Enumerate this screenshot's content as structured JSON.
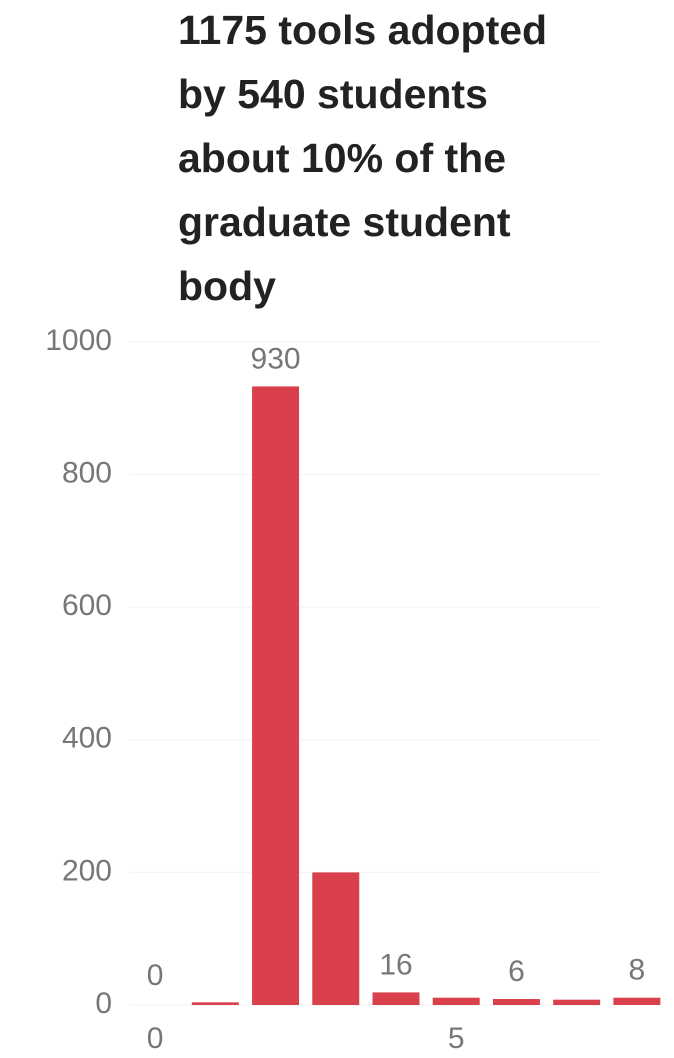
{
  "chart_data": {
    "type": "bar",
    "title": [
      "1175 tools adopted",
      "by 540 students",
      "about 10% of the",
      "graduate student",
      "body"
    ],
    "x": [
      0,
      1,
      2,
      3,
      4,
      5,
      6,
      7,
      8
    ],
    "values": [
      0,
      1,
      930,
      197,
      16,
      8,
      6,
      5,
      8
    ],
    "value_labels": [
      "0",
      null,
      "930",
      null,
      "16",
      null,
      "6",
      null,
      "8"
    ],
    "color": "#d9404b",
    "xlim": [
      -0.5,
      8.5
    ],
    "xticks": [
      0,
      5
    ],
    "ylim": [
      0,
      1000
    ],
    "yticks": [
      0,
      200,
      400,
      600,
      800,
      1000
    ],
    "grid": true
  }
}
